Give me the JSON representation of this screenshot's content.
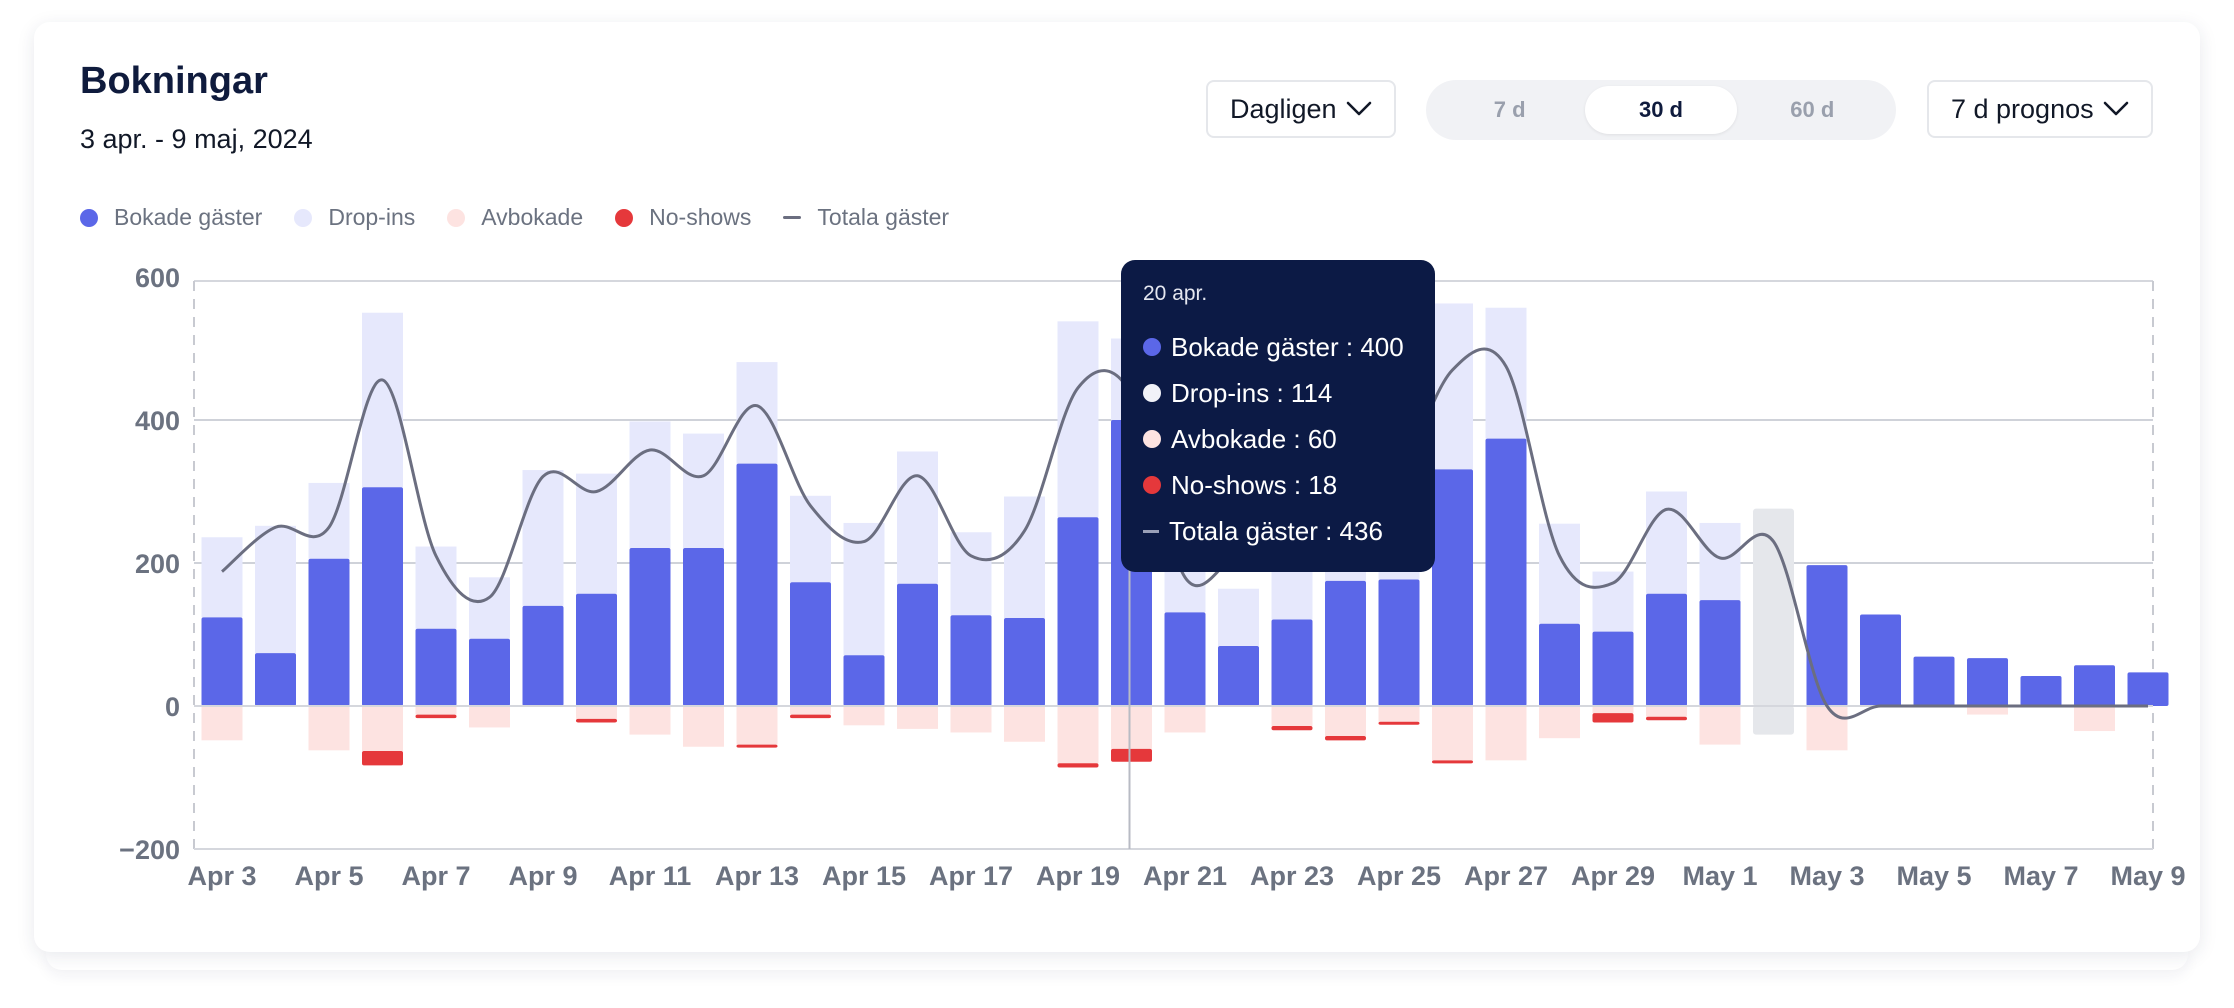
{
  "header": {
    "title": "Bokningar",
    "subtitle": "3 apr. - 9 maj, 2024"
  },
  "controls": {
    "interval_label": "Dagligen",
    "ranges": [
      "7 d",
      "30 d",
      "60 d"
    ],
    "active_range": "30 d",
    "forecast_label": "7 d prognos"
  },
  "legend": [
    {
      "name": "Bokade gäster",
      "color": "#5b67e8",
      "marker": "dot"
    },
    {
      "name": "Drop-ins",
      "color": "#e6e8fc",
      "marker": "dot"
    },
    {
      "name": "Avbokade",
      "color": "#fde3e1",
      "marker": "dot"
    },
    {
      "name": "No-shows",
      "color": "#e5383b",
      "marker": "dot"
    },
    {
      "name": "Totala gäster",
      "color": "#6b6e80",
      "marker": "line"
    }
  ],
  "tooltip": {
    "date": "20 apr.",
    "rows": [
      {
        "label": "Bokade gäster : 400",
        "color": "#5b67e8",
        "marker": "dot"
      },
      {
        "label": "Drop-ins : 114",
        "color": "#f1f2f8",
        "marker": "dot"
      },
      {
        "label": "Avbokade : 60",
        "color": "#fde3e1",
        "marker": "dot"
      },
      {
        "label": "No-shows : 18",
        "color": "#e5383b",
        "marker": "dot"
      },
      {
        "label": "Totala gäster : 436",
        "color": "#9aa0b8",
        "marker": "line"
      }
    ]
  },
  "chart_data": {
    "type": "bar",
    "x_labels": [
      "Apr 3",
      "Apr 5",
      "Apr 7",
      "Apr 9",
      "Apr 11",
      "Apr 13",
      "Apr 15",
      "Apr 17",
      "Apr 19",
      "Apr 21",
      "Apr 23",
      "Apr 25",
      "Apr 27",
      "Apr 29",
      "May 1",
      "May 3",
      "May 5",
      "May 7",
      "May 9"
    ],
    "y_ticks": [
      600,
      400,
      200,
      0,
      -200
    ],
    "y_tick_labels": [
      "600",
      "400",
      "200",
      "0",
      "−200"
    ],
    "ylim": [
      -200,
      600
    ],
    "forecast_start": "May 2",
    "highlight_day": "Apr 20",
    "days": [
      "Apr 3",
      "Apr 4",
      "Apr 5",
      "Apr 6",
      "Apr 7",
      "Apr 8",
      "Apr 9",
      "Apr 10",
      "Apr 11",
      "Apr 12",
      "Apr 13",
      "Apr 14",
      "Apr 15",
      "Apr 16",
      "Apr 17",
      "Apr 18",
      "Apr 19",
      "Apr 20",
      "Apr 21",
      "Apr 22",
      "Apr 23",
      "Apr 24",
      "Apr 25",
      "Apr 26",
      "Apr 27",
      "Apr 28",
      "Apr 29",
      "Apr 30",
      "May 1",
      "May 2",
      "May 3",
      "May 4",
      "May 5",
      "May 6",
      "May 7",
      "May 8",
      "May 9"
    ],
    "series": [
      {
        "name": "Bokade gäster",
        "color": "#5b67e8",
        "values": [
          124,
          74,
          206,
          306,
          108,
          94,
          140,
          157,
          221,
          221,
          339,
          173,
          71,
          171,
          127,
          123,
          264,
          400,
          131,
          84,
          121,
          175,
          177,
          331,
          374,
          115,
          104,
          157,
          148,
          0,
          197,
          128,
          69,
          67,
          42,
          57,
          47
        ]
      },
      {
        "name": "Drop-ins",
        "color": "#e6e8fc",
        "values": [
          112,
          178,
          106,
          244,
          115,
          86,
          190,
          168,
          177,
          160,
          142,
          121,
          185,
          185,
          116,
          170,
          274,
          114,
          70,
          80,
          90,
          126,
          123,
          232,
          183,
          140,
          84,
          143,
          108,
          0,
          0,
          0,
          0,
          0,
          0,
          0,
          0
        ]
      },
      {
        "name": "Avbokade",
        "color": "#fde3e1",
        "values": [
          -48,
          0,
          -62,
          -63,
          -12,
          -30,
          0,
          -18,
          -40,
          -57,
          -54,
          -12,
          -27,
          -32,
          -37,
          -50,
          -80,
          -60,
          -37,
          0,
          -28,
          -42,
          -22,
          -76,
          -76,
          -45,
          -10,
          -15,
          -54,
          0,
          -62,
          0,
          0,
          -12,
          0,
          -35,
          0
        ]
      },
      {
        "name": "No-shows",
        "color": "#e5383b",
        "values": [
          0,
          0,
          0,
          -20,
          -5,
          0,
          0,
          -5,
          0,
          0,
          -4,
          -5,
          0,
          0,
          0,
          0,
          -6,
          -18,
          0,
          0,
          -6,
          -6,
          -4,
          -4,
          0,
          0,
          -13,
          -5,
          0,
          0,
          0,
          0,
          0,
          0,
          0,
          0,
          0
        ]
      },
      {
        "name": "Totala gäster",
        "color": "#6b6e80",
        "type": "line",
        "values": [
          188,
          250,
          250,
          456,
          210,
          152,
          321,
          300,
          358,
          322,
          420,
          280,
          230,
          322,
          210,
          245,
          445,
          436,
          180,
          212,
          222,
          250,
          322,
          470,
          475,
          210,
          172,
          275,
          207,
          230,
          0,
          0,
          0,
          0,
          0,
          0,
          0
        ]
      },
      {
        "name": "Prognos",
        "color": "#e5e7eb",
        "values": [
          0,
          0,
          0,
          0,
          0,
          0,
          0,
          0,
          0,
          0,
          0,
          0,
          0,
          0,
          0,
          0,
          0,
          0,
          0,
          0,
          0,
          0,
          0,
          0,
          0,
          0,
          0,
          0,
          0,
          276,
          0,
          0,
          0,
          0,
          0,
          0,
          0
        ]
      },
      {
        "name": "Prognos avbokade",
        "color": "#e5e7eb",
        "values": [
          0,
          0,
          0,
          0,
          0,
          0,
          0,
          0,
          0,
          0,
          0,
          0,
          0,
          0,
          0,
          0,
          0,
          0,
          0,
          0,
          0,
          0,
          0,
          0,
          0,
          0,
          0,
          0,
          0,
          -40,
          0,
          0,
          0,
          0,
          0,
          0,
          0
        ]
      }
    ]
  }
}
